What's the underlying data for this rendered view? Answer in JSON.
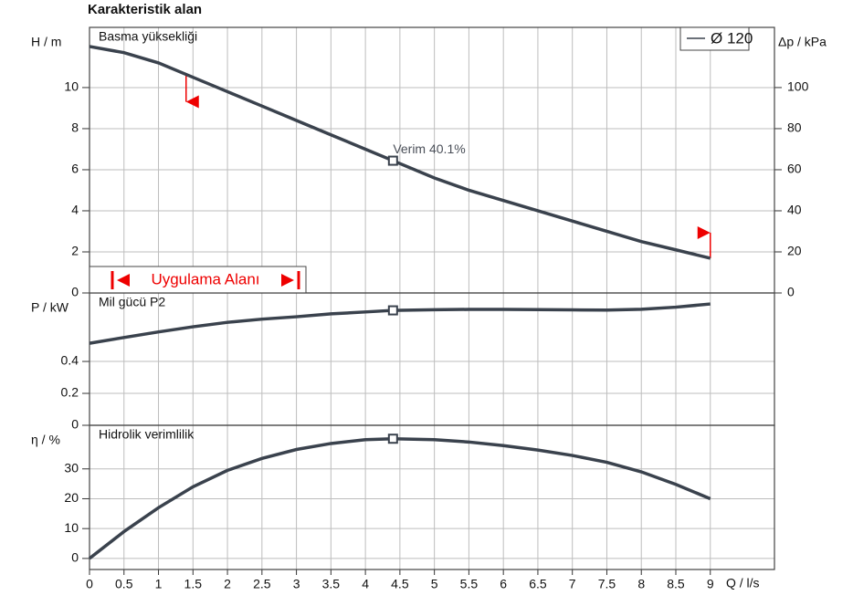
{
  "chart_data": {
    "type": "line",
    "title": "Karakteristik alan",
    "xlabel": "Q / l/s",
    "x": [
      0,
      0.5,
      1,
      1.5,
      2,
      2.5,
      3,
      3.5,
      4,
      4.4,
      5,
      5.5,
      6,
      6.5,
      7,
      7.5,
      8,
      8.5,
      9
    ],
    "xlim": [
      0,
      9.93
    ],
    "xticks": [
      0,
      0.5,
      1,
      1.5,
      2,
      2.5,
      3,
      3.5,
      4,
      4.5,
      5,
      5.5,
      6,
      6.5,
      7,
      7.5,
      8,
      8.5,
      9
    ],
    "series_name": "Ø 120",
    "color": "#3a424d",
    "grid": true,
    "operating_point_index": 9,
    "range": [
      1.4,
      9
    ],
    "range_label": "Uygulama Alanı",
    "operating_label": "Verim  40.1%",
    "panels": [
      {
        "label": "Basma yüksekliği",
        "ylabel": "H / m",
        "ylim": [
          0,
          12.93
        ],
        "yticks": [
          0,
          2,
          4,
          6,
          8,
          10
        ],
        "y2label": "Δp / kPa",
        "y2lim": [
          0,
          129.3
        ],
        "y2ticks": [
          0,
          20,
          40,
          60,
          80,
          100
        ],
        "values": [
          12.0,
          11.7,
          11.2,
          10.5,
          9.8,
          9.1,
          8.4,
          7.7,
          7.0,
          6.44,
          5.6,
          5.0,
          4.5,
          4.0,
          3.5,
          3.0,
          2.5,
          2.1,
          1.69
        ]
      },
      {
        "label": "Mil gücü P2",
        "ylabel": "P / kW",
        "ylim": [
          0,
          0.829
        ],
        "yticks": [
          0,
          0.2,
          0.4
        ],
        "values": [
          0.514,
          0.55,
          0.585,
          0.617,
          0.645,
          0.665,
          0.68,
          0.698,
          0.71,
          0.72,
          0.724,
          0.726,
          0.726,
          0.725,
          0.723,
          0.722,
          0.727,
          0.74,
          0.76
        ]
      },
      {
        "label": "Hidrolik verimlilik",
        "ylabel": "η / %",
        "ylim": [
          -3.7,
          44.6
        ],
        "yticks": [
          0,
          10,
          20,
          30
        ],
        "values": [
          0,
          9,
          17,
          24,
          29.5,
          33.5,
          36.5,
          38.5,
          39.8,
          40.1,
          39.8,
          39,
          37.8,
          36.3,
          34.5,
          32.2,
          29,
          24.8,
          20
        ]
      }
    ]
  }
}
